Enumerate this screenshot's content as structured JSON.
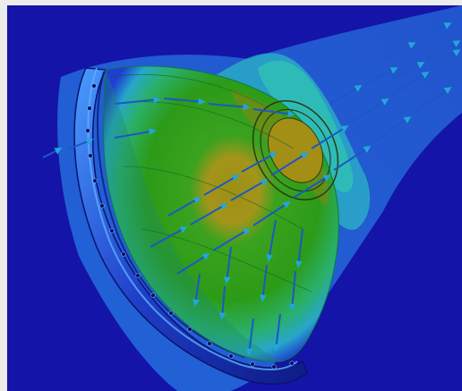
{
  "scene": {
    "subject": "",
    "colors": {
      "background": "#1414a8",
      "frame": "#ececec",
      "low": "#1e3fd0",
      "mid_low": "#27a7c9",
      "mid": "#2ab06a",
      "high": "#3aa21e",
      "peak": "#9d8f14",
      "rim_dark": "#0e1a86",
      "rim_light": "#4a9bff",
      "arrow": "#1b58c6",
      "arrow_head": "#22a7d9"
    }
  }
}
